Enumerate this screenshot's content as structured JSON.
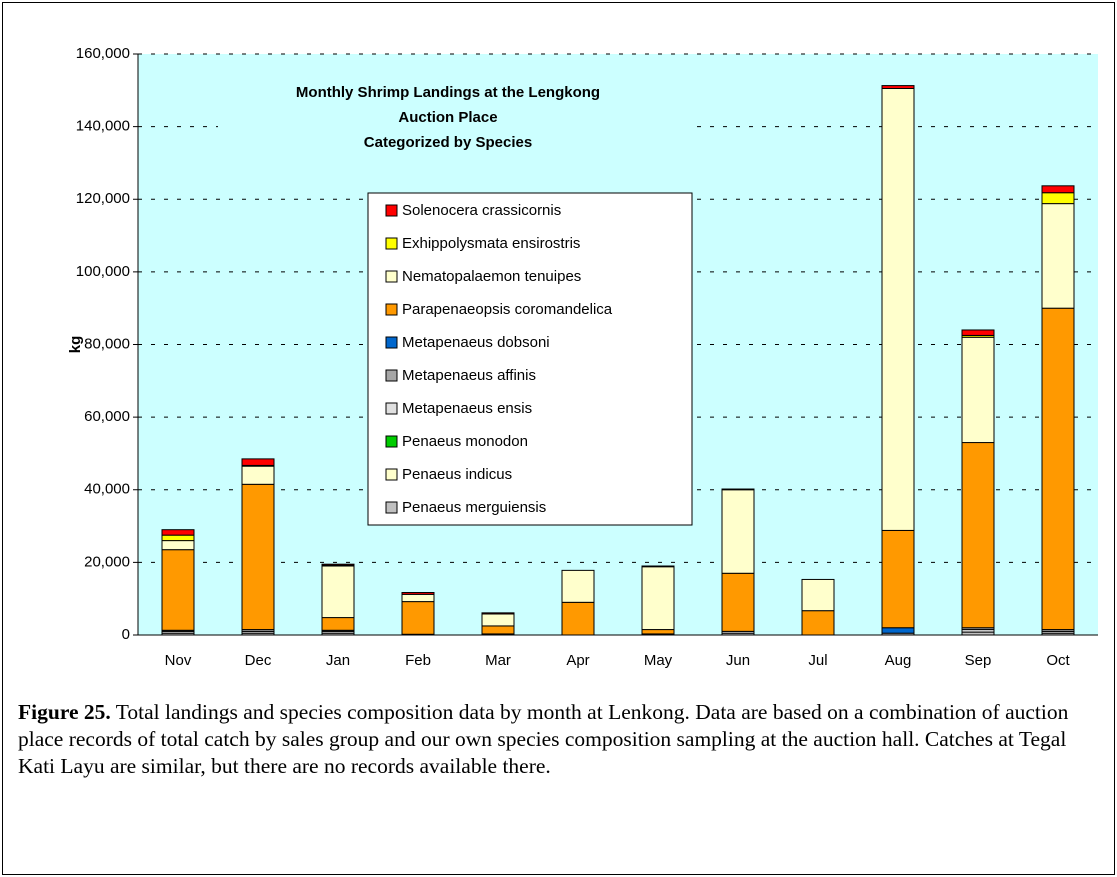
{
  "chart_data": {
    "type": "stacked_bar",
    "title": [
      "Monthly Shrimp Landings at the Lengkong",
      "Auction Place",
      "Categorized by Species"
    ],
    "y_label": "kg",
    "categories": [
      "Nov",
      "Dec",
      "Jan",
      "Feb",
      "Mar",
      "Apr",
      "May",
      "Jun",
      "Jul",
      "Aug",
      "Sep",
      "Oct"
    ],
    "series": [
      {
        "name": "Penaeus merguiensis",
        "color": "#c0c0c0",
        "values": [
          500,
          500,
          500,
          200,
          300,
          0,
          300,
          500,
          0,
          500,
          800,
          500
        ]
      },
      {
        "name": "Penaeus indicus",
        "color": "#ffffcc",
        "values": [
          0,
          0,
          0,
          0,
          0,
          0,
          0,
          0,
          0,
          0,
          0,
          0
        ]
      },
      {
        "name": "Penaeus monodon",
        "color": "#00cc00",
        "values": [
          0,
          0,
          0,
          0,
          0,
          0,
          0,
          0,
          0,
          0,
          0,
          0
        ]
      },
      {
        "name": "Metapenaeus ensis",
        "color": "#e0e0e0",
        "values": [
          500,
          500,
          500,
          0,
          0,
          0,
          0,
          500,
          0,
          0,
          700,
          500
        ]
      },
      {
        "name": "Metapenaeus affinis",
        "color": "#a6a6a6",
        "values": [
          300,
          500,
          300,
          0,
          0,
          0,
          0,
          0,
          0,
          0,
          500,
          500
        ]
      },
      {
        "name": "Metapenaeus dobsoni",
        "color": "#0066cc",
        "values": [
          0,
          0,
          0,
          0,
          0,
          0,
          0,
          0,
          0,
          1500,
          0,
          0
        ]
      },
      {
        "name": "Parapenaeopsis coromandelica",
        "color": "#ff9900",
        "values": [
          22200,
          40000,
          3500,
          9000,
          2200,
          9000,
          1200,
          16000,
          6700,
          26800,
          51000,
          88500
        ]
      },
      {
        "name": "Nematopalaemon tenuipes",
        "color": "#ffffcc",
        "values": [
          2500,
          5000,
          14200,
          2000,
          3300,
          8800,
          17300,
          23000,
          8600,
          121700,
          29000,
          28800
        ]
      },
      {
        "name": "Exhippolysmata ensirostris",
        "color": "#ffff00",
        "values": [
          1500,
          200,
          200,
          0,
          0,
          0,
          0,
          0,
          0,
          0,
          500,
          3000
        ]
      },
      {
        "name": "Solenocera crassicornis",
        "color": "#ff0000",
        "values": [
          1500,
          1800,
          300,
          500,
          300,
          0,
          200,
          200,
          0,
          800,
          1500,
          1900
        ]
      }
    ],
    "ylim": [
      0,
      160000
    ],
    "yticks": [
      0,
      {
        "value": 20000,
        "label": "20,000"
      },
      {
        "value": 40000,
        "label": "40,000"
      },
      {
        "value": 60000,
        "label": "60,000"
      },
      {
        "value": 80000,
        "label": "80,000"
      },
      {
        "value": 100000,
        "label": "100,000"
      },
      {
        "value": 120000,
        "label": "120,000"
      },
      {
        "value": 140000,
        "label": "140,000"
      },
      {
        "value": 160000,
        "label": "160,000"
      }
    ],
    "grid": true,
    "plot_background": "#ccffff",
    "caption_label": "Figure 25.",
    "caption": "Total landings and species composition data by month at Lenkong.  Data are based on a combination of auction place records of total catch by sales group and our own species composition sampling at the auction hall.  Catches at Tegal Kati Layu are similar, but there are no records available there."
  }
}
